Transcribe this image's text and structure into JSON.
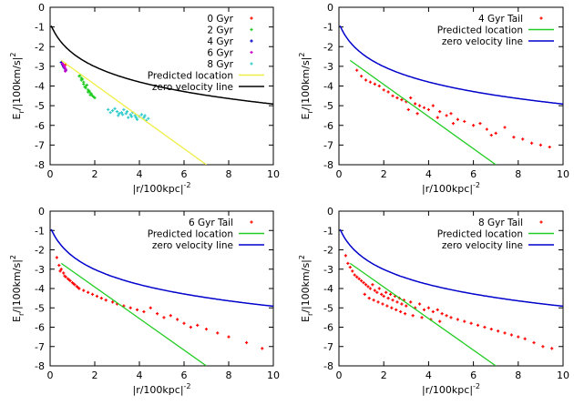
{
  "chart_data": [
    {
      "type": "scatter",
      "xlabel": "|r/100kpc|",
      "xlabel_exp": "-2",
      "ylabel": "E",
      "ylabel_sub": "r",
      "ylabel_tail": "/|100km/s|",
      "ylabel_exp": "2",
      "xlim": [
        0,
        10
      ],
      "ylim": [
        -8,
        0
      ],
      "xticks": [
        "0",
        "2",
        "4",
        "6",
        "8",
        "10"
      ],
      "yticks": [
        "-8",
        "-7",
        "-6",
        "-5",
        "-4",
        "-3",
        "-2",
        "-1",
        "0"
      ],
      "legend_position": "top-right",
      "series": [
        {
          "name": "0 Gyr",
          "kind": "points",
          "color": "#ff0000",
          "x": [
            0.7
          ],
          "y": [
            -2.9
          ]
        },
        {
          "name": "2 Gyr",
          "kind": "points",
          "color": "#22cc22",
          "x": [
            1.3,
            1.4,
            1.5,
            1.6,
            1.7,
            1.8,
            1.4,
            1.6,
            1.9,
            1.5,
            1.7,
            2.0,
            1.8,
            1.55,
            1.65,
            1.45,
            1.75,
            1.95,
            1.35,
            1.85
          ],
          "y": [
            -3.5,
            -3.7,
            -3.9,
            -4.1,
            -4.3,
            -4.45,
            -3.6,
            -4.0,
            -4.5,
            -3.8,
            -4.2,
            -4.6,
            -4.35,
            -4.05,
            -3.95,
            -3.65,
            -4.25,
            -4.55,
            -3.45,
            -4.4
          ]
        },
        {
          "name": "4 Gyr",
          "kind": "points",
          "color": "#0000cc",
          "x": [
            0.5,
            0.55,
            0.6,
            0.65,
            0.7,
            0.62,
            0.58
          ],
          "y": [
            -2.8,
            -2.9,
            -3.0,
            -3.1,
            -3.2,
            -3.05,
            -2.95
          ]
        },
        {
          "name": "6 Gyr",
          "kind": "points",
          "color": "#cc00cc",
          "x": [
            0.55,
            0.6,
            0.65,
            0.7,
            0.68,
            0.63
          ],
          "y": [
            -2.85,
            -2.95,
            -3.05,
            -3.15,
            -3.25,
            -3.0
          ]
        },
        {
          "name": "8 Gyr",
          "kind": "points",
          "color": "#33cccc",
          "x": [
            2.6,
            2.8,
            3.0,
            3.2,
            3.4,
            3.6,
            3.8,
            4.0,
            4.2,
            4.4,
            2.9,
            3.1,
            3.3,
            3.5,
            3.7,
            3.9,
            4.1,
            4.3,
            2.7,
            3.05,
            3.45,
            3.85,
            4.25,
            3.25,
            3.65
          ],
          "y": [
            -5.2,
            -5.25,
            -5.3,
            -5.35,
            -5.4,
            -5.45,
            -5.5,
            -5.55,
            -5.6,
            -5.65,
            -5.15,
            -5.4,
            -5.2,
            -5.6,
            -5.35,
            -5.7,
            -5.45,
            -5.75,
            -5.35,
            -5.5,
            -5.3,
            -5.6,
            -5.5,
            -5.45,
            -5.55
          ]
        },
        {
          "name": "Predicted location",
          "kind": "line",
          "color": "#eeee44",
          "x": [
            0.5,
            7.0
          ],
          "y": [
            -2.7,
            -8.0
          ]
        },
        {
          "name": "zero velocity line",
          "kind": "curve",
          "color": "#000000"
        }
      ]
    },
    {
      "type": "scatter",
      "xlabel": "|r/100kpc|",
      "xlabel_exp": "-2",
      "ylabel": "E",
      "ylabel_sub": "r",
      "ylabel_tail": "/|100km/s|",
      "ylabel_exp": "2",
      "xlim": [
        0,
        10
      ],
      "ylim": [
        -8,
        0
      ],
      "xticks": [
        "0",
        "2",
        "4",
        "6",
        "8",
        "10"
      ],
      "yticks": [
        "-8",
        "-7",
        "-6",
        "-5",
        "-4",
        "-3",
        "-2",
        "-1",
        "0"
      ],
      "legend_position": "top-right",
      "series": [
        {
          "name": "4 Gyr Tail",
          "kind": "points",
          "color": "#ff0000",
          "x": [
            0.8,
            1.0,
            1.2,
            1.4,
            1.6,
            1.8,
            2.0,
            2.2,
            2.4,
            2.6,
            2.8,
            3.0,
            3.2,
            3.4,
            3.6,
            3.8,
            4.0,
            4.2,
            4.5,
            4.8,
            5.0,
            5.3,
            5.6,
            6.0,
            6.3,
            6.6,
            7.0,
            7.4,
            7.8,
            8.2,
            8.6,
            9.0,
            9.4,
            3.1,
            3.5,
            4.4,
            5.1,
            6.8
          ],
          "y": [
            -3.2,
            -3.5,
            -3.7,
            -3.8,
            -3.9,
            -4.0,
            -4.2,
            -4.3,
            -4.5,
            -4.6,
            -4.7,
            -4.8,
            -4.6,
            -4.9,
            -5.0,
            -5.1,
            -5.2,
            -5.0,
            -5.3,
            -5.5,
            -5.4,
            -5.7,
            -5.8,
            -6.0,
            -5.9,
            -6.2,
            -6.4,
            -6.1,
            -6.6,
            -6.7,
            -6.9,
            -7.0,
            -7.1,
            -5.2,
            -5.4,
            -5.6,
            -5.9,
            -6.5
          ]
        },
        {
          "name": "Predicted location",
          "kind": "line",
          "color": "#22cc22",
          "x": [
            0.5,
            7.0
          ],
          "y": [
            -2.7,
            -8.0
          ]
        },
        {
          "name": "zero velocity line",
          "kind": "curve",
          "color": "#0000cc"
        }
      ]
    },
    {
      "type": "scatter",
      "xlabel": "|r/100kpc|",
      "xlabel_exp": "-2",
      "ylabel": "E",
      "ylabel_sub": "r",
      "ylabel_tail": "/|100km/s|",
      "ylabel_exp": "2",
      "xlim": [
        0,
        10
      ],
      "ylim": [
        -8,
        0
      ],
      "xticks": [
        "0",
        "2",
        "4",
        "6",
        "8",
        "10"
      ],
      "yticks": [
        "-8",
        "-7",
        "-6",
        "-5",
        "-4",
        "-3",
        "-2",
        "-1",
        "0"
      ],
      "legend_position": "top-right",
      "series": [
        {
          "name": "6 Gyr Tail",
          "kind": "points",
          "color": "#ff0000",
          "x": [
            0.3,
            0.4,
            0.5,
            0.6,
            0.7,
            0.8,
            0.9,
            1.0,
            1.1,
            1.2,
            1.3,
            1.5,
            1.7,
            1.9,
            2.1,
            2.3,
            2.5,
            2.8,
            3.0,
            3.3,
            3.6,
            3.9,
            4.2,
            4.5,
            4.8,
            5.1,
            5.4,
            5.7,
            6.0,
            6.3,
            6.6,
            7.0,
            7.5,
            8.0,
            8.8,
            9.5,
            0.45,
            0.65,
            0.85,
            1.05,
            1.25
          ],
          "y": [
            -2.4,
            -2.8,
            -3.0,
            -3.2,
            -3.4,
            -3.5,
            -3.6,
            -3.7,
            -3.8,
            -3.9,
            -4.0,
            -4.1,
            -4.2,
            -4.3,
            -4.4,
            -4.5,
            -4.6,
            -4.7,
            -4.8,
            -4.9,
            -5.0,
            -5.1,
            -5.2,
            -5.0,
            -5.3,
            -5.5,
            -5.4,
            -5.6,
            -5.8,
            -6.0,
            -5.9,
            -6.1,
            -6.3,
            -6.5,
            -6.8,
            -7.1,
            -3.1,
            -3.35,
            -3.55,
            -3.75,
            -3.95
          ]
        },
        {
          "name": "Predicted location",
          "kind": "line",
          "color": "#22cc22",
          "x": [
            0.5,
            7.0
          ],
          "y": [
            -2.7,
            -8.0
          ]
        },
        {
          "name": "zero velocity line",
          "kind": "curve",
          "color": "#0000cc"
        }
      ]
    },
    {
      "type": "scatter",
      "xlabel": "|r/100kpc|",
      "xlabel_exp": "-2",
      "ylabel": "E",
      "ylabel_sub": "r",
      "ylabel_tail": "/|100km/s|",
      "ylabel_exp": "2",
      "xlim": [
        0,
        10
      ],
      "ylim": [
        -8,
        0
      ],
      "xticks": [
        "0",
        "2",
        "4",
        "6",
        "8",
        "10"
      ],
      "yticks": [
        "-8",
        "-7",
        "-6",
        "-5",
        "-4",
        "-3",
        "-2",
        "-1",
        "0"
      ],
      "legend_position": "top-right",
      "series": [
        {
          "name": "8 Gyr Tail",
          "kind": "points",
          "color": "#ff0000",
          "x": [
            0.3,
            0.4,
            0.5,
            0.6,
            0.7,
            0.8,
            0.9,
            1.0,
            1.1,
            1.2,
            1.3,
            1.4,
            1.5,
            1.6,
            1.7,
            1.8,
            1.9,
            2.0,
            2.1,
            2.2,
            2.3,
            2.4,
            2.5,
            2.6,
            2.7,
            2.8,
            2.9,
            3.0,
            3.2,
            3.4,
            3.6,
            3.8,
            4.0,
            4.2,
            4.4,
            4.6,
            4.8,
            5.0,
            5.3,
            5.6,
            5.9,
            6.2,
            6.5,
            6.8,
            7.1,
            7.4,
            7.7,
            8.0,
            8.3,
            8.7,
            9.1,
            9.5,
            1.15,
            1.35,
            1.55,
            1.75,
            1.95,
            2.15,
            2.35,
            2.55,
            2.75,
            2.95,
            3.3,
            3.7,
            4.1,
            4.5
          ],
          "y": [
            -2.3,
            -2.7,
            -2.9,
            -3.1,
            -3.3,
            -3.4,
            -3.5,
            -3.6,
            -3.7,
            -3.8,
            -3.9,
            -4.0,
            -3.8,
            -4.1,
            -4.2,
            -4.0,
            -4.3,
            -4.4,
            -4.2,
            -4.5,
            -4.3,
            -4.6,
            -4.4,
            -4.7,
            -4.5,
            -4.8,
            -4.6,
            -4.9,
            -4.7,
            -5.0,
            -4.8,
            -5.1,
            -5.0,
            -5.2,
            -5.1,
            -5.3,
            -5.4,
            -5.5,
            -5.6,
            -5.7,
            -5.8,
            -5.9,
            -6.0,
            -6.1,
            -6.2,
            -6.3,
            -6.4,
            -6.5,
            -6.6,
            -6.8,
            -7.0,
            -7.1,
            -4.3,
            -4.5,
            -4.6,
            -4.7,
            -4.8,
            -4.9,
            -5.0,
            -5.1,
            -5.2,
            -5.3,
            -5.4,
            -5.5,
            -5.6,
            -5.7
          ]
        },
        {
          "name": "Predicted location",
          "kind": "line",
          "color": "#22cc22",
          "x": [
            0.5,
            7.0
          ],
          "y": [
            -2.7,
            -8.0
          ]
        },
        {
          "name": "zero velocity line",
          "kind": "curve",
          "color": "#0000cc"
        }
      ]
    }
  ]
}
